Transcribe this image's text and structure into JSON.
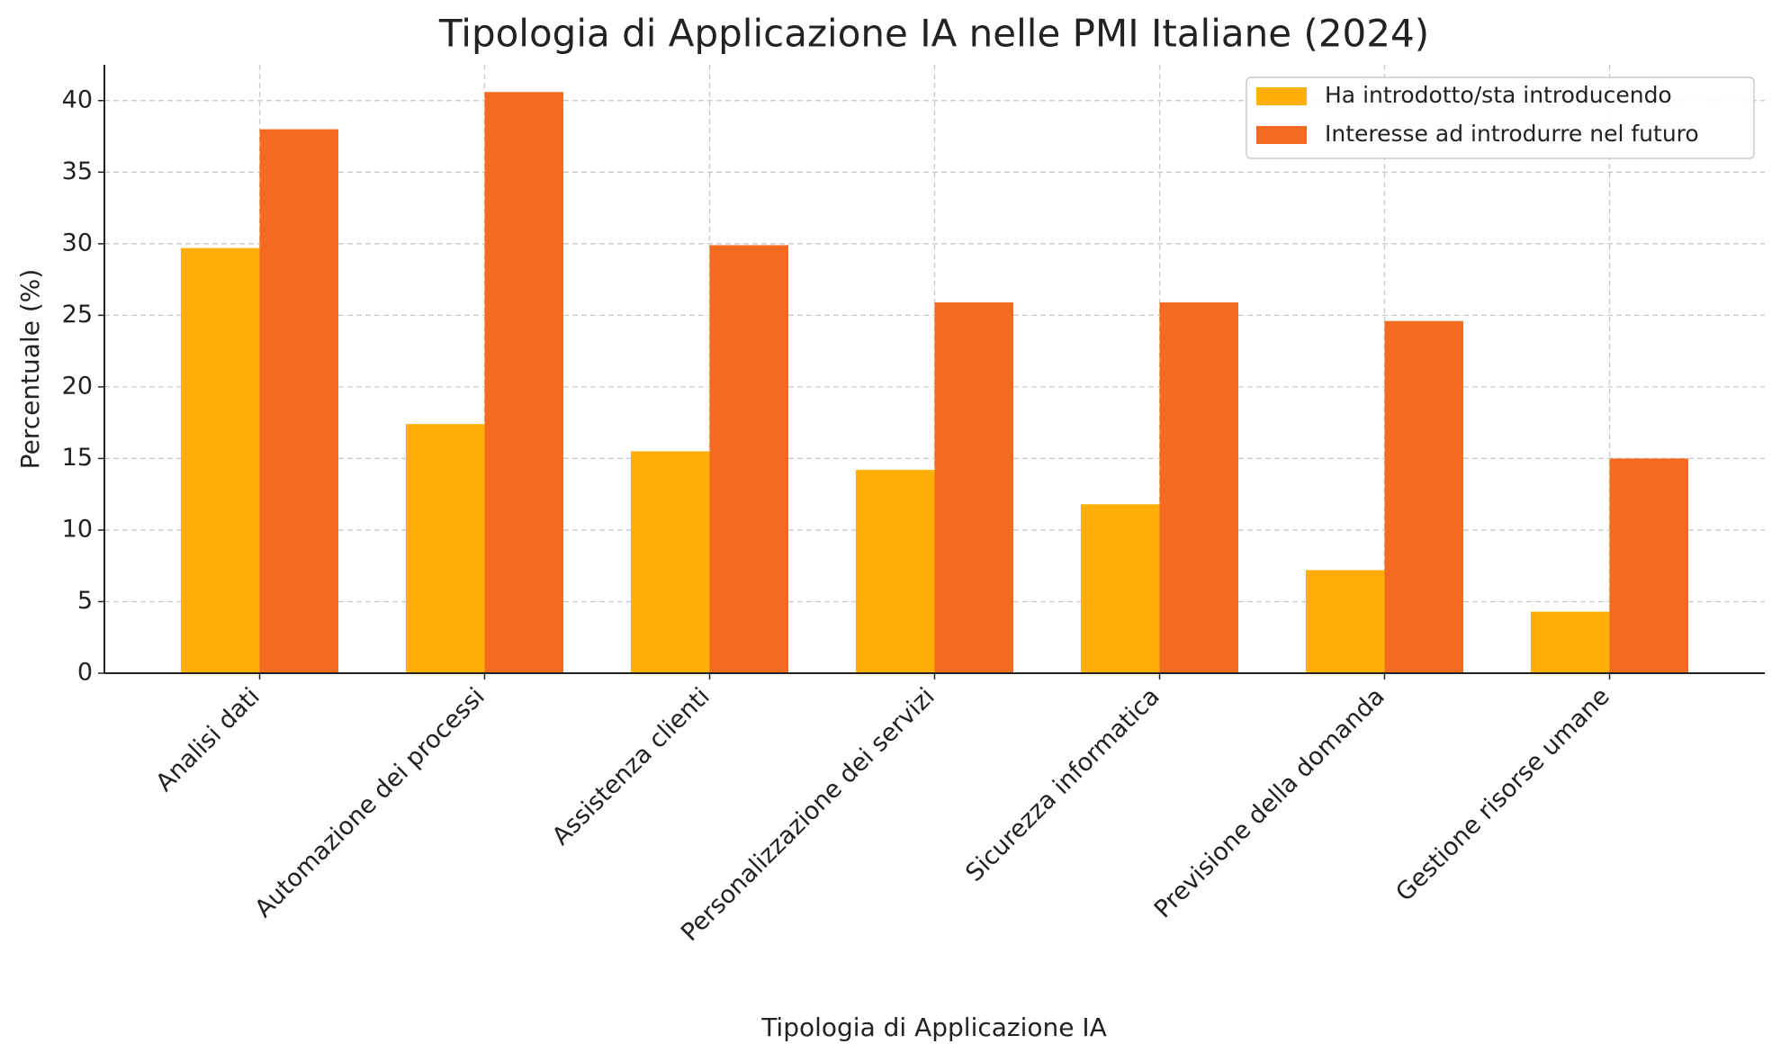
{
  "chart_data": {
    "type": "bar",
    "title": "Tipologia di Applicazione IA nelle PMI Italiane (2024)",
    "x_label": "Tipologia di Applicazione IA",
    "y_label": "Percentuale (%)",
    "categories": [
      "Analisi dati",
      "Automazione dei processi",
      "Assistenza clienti",
      "Personalizzazione dei servizi",
      "Sicurezza informatica",
      "Previsione della domanda",
      "Gestione risorse umane"
    ],
    "series": [
      {
        "name": "Ha introdotto/sta introducendo",
        "color": "#ffae05",
        "values": [
          29.7,
          17.4,
          15.5,
          14.2,
          11.8,
          7.2,
          4.3
        ]
      },
      {
        "name": "Interesse ad introdurre nel futuro",
        "color": "#f26b21",
        "values": [
          38.0,
          40.6,
          29.9,
          25.9,
          25.9,
          24.6,
          15.0
        ]
      }
    ],
    "ylim": [
      0,
      42.5
    ],
    "yticks": [
      0,
      5,
      10,
      15,
      20,
      25,
      30,
      35,
      40
    ],
    "grid": true,
    "legend": "upper right"
  }
}
